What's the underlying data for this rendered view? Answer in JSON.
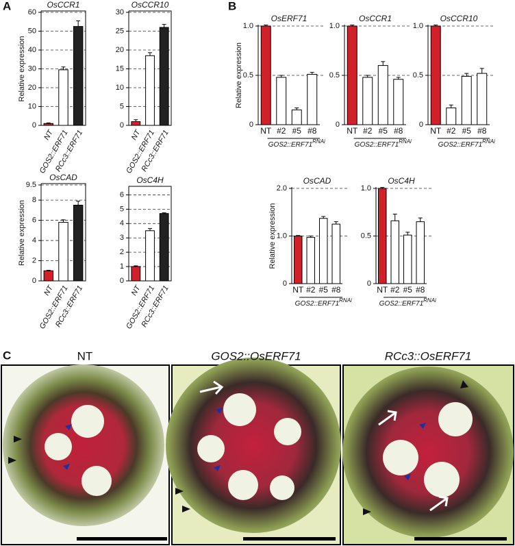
{
  "labels": [
    "A",
    "B",
    "C"
  ],
  "chart_data": [
    {
      "type": "bar",
      "title": "OsCCR1",
      "ylabel": "Relative expression",
      "categories": [
        "NT",
        "GOS2::ERF71",
        "RCc3::ERF71"
      ],
      "values": [
        1,
        29.5,
        52.5
      ],
      "errors": [
        0.3,
        1.5,
        3
      ],
      "colors": [
        "#d0202a",
        "#ffffff",
        "#222222"
      ],
      "ylim": [
        0,
        60
      ],
      "yticks": [
        0,
        10,
        20,
        30,
        40,
        50,
        60
      ],
      "grid": true
    },
    {
      "type": "bar",
      "title": "OsCCR10",
      "categories": [
        "NT",
        "GOS2::ERF71",
        "RCc3::ERF71"
      ],
      "values": [
        1,
        18.5,
        26
      ],
      "errors": [
        0.5,
        0.8,
        0.8
      ],
      "colors": [
        "#d0202a",
        "#ffffff",
        "#222222"
      ],
      "ylim": [
        0,
        30
      ],
      "yticks": [
        0,
        5,
        10,
        15,
        20,
        25,
        30
      ],
      "grid": true
    },
    {
      "type": "bar",
      "title": "OsCAD",
      "ylabel": "Relative expression",
      "categories": [
        "NT",
        "GOS2::ERF71",
        "RCc3::ERF71"
      ],
      "values": [
        1,
        5.8,
        7.5
      ],
      "errors": [
        0.05,
        0.25,
        0.4
      ],
      "colors": [
        "#d0202a",
        "#ffffff",
        "#222222"
      ],
      "ylim": [
        0,
        9.5
      ],
      "yticks": [
        0,
        2,
        4,
        6,
        8,
        9.5
      ],
      "grid": true
    },
    {
      "type": "bar",
      "title": "OsC4H",
      "categories": [
        "NT",
        "GOS2::ERF71",
        "RCc3::ERF71"
      ],
      "values": [
        1,
        3.5,
        4.7
      ],
      "errors": [
        0.05,
        0.15,
        0.05
      ],
      "colors": [
        "#d0202a",
        "#ffffff",
        "#222222"
      ],
      "ylim": [
        0,
        6.5
      ],
      "yticks": [
        0,
        1,
        2,
        3,
        4,
        5,
        6
      ],
      "grid": true
    },
    {
      "type": "bar",
      "title": "OsERF71",
      "ylabel": "Relative expression",
      "categories": [
        "NT",
        "#2",
        "#5",
        "#8"
      ],
      "values": [
        1,
        0.48,
        0.15,
        0.51
      ],
      "errors": [
        0.01,
        0.02,
        0.02,
        0.02
      ],
      "colors": [
        "#d0202a",
        "#ffffff",
        "#ffffff",
        "#ffffff"
      ],
      "ylim": [
        0,
        1
      ],
      "yticks": [
        0,
        0.5,
        {
          "value": 1,
          "label": "1.0"
        }
      ],
      "grid": true,
      "xlabel": "GOS2::ERF71",
      "xlabel_sup": "RNAi"
    },
    {
      "type": "bar",
      "title": "OsCCR1",
      "categories": [
        "NT",
        "#2",
        "#5",
        "#8"
      ],
      "values": [
        1,
        0.48,
        0.6,
        0.46
      ],
      "errors": [
        0.01,
        0.02,
        0.04,
        0.02
      ],
      "colors": [
        "#d0202a",
        "#ffffff",
        "#ffffff",
        "#ffffff"
      ],
      "ylim": [
        0,
        1
      ],
      "yticks": [
        0,
        0.5,
        {
          "value": 1,
          "label": "1.0"
        }
      ],
      "grid": true,
      "xlabel": "GOS2::ERF71",
      "xlabel_sup": "RNAi"
    },
    {
      "type": "bar",
      "title": "OsCCR10",
      "categories": [
        "NT",
        "#2",
        "#5",
        "#8"
      ],
      "values": [
        1,
        0.17,
        0.49,
        0.52
      ],
      "errors": [
        0.01,
        0.03,
        0.03,
        0.05
      ],
      "colors": [
        "#d0202a",
        "#ffffff",
        "#ffffff",
        "#ffffff"
      ],
      "ylim": [
        0,
        1
      ],
      "yticks": [
        0,
        0.5,
        {
          "value": 1,
          "label": "1.0"
        }
      ],
      "grid": true,
      "xlabel": "GOS2::ERF71",
      "xlabel_sup": "RNAi"
    },
    {
      "type": "bar",
      "title": "OsCAD",
      "ylabel": "Relative expression",
      "categories": [
        "NT",
        "#2",
        "#5",
        "#8"
      ],
      "values": [
        1,
        0.97,
        1.37,
        1.25
      ],
      "errors": [
        0.01,
        0.03,
        0.04,
        0.05
      ],
      "colors": [
        "#d0202a",
        "#ffffff",
        "#ffffff",
        "#ffffff"
      ],
      "ylim": [
        0,
        2
      ],
      "yticks": [
        0,
        {
          "value": 1,
          "label": "1.0"
        },
        {
          "value": 2,
          "label": "2.0"
        }
      ],
      "grid": true,
      "xlabel": "GOS2::ERF71",
      "xlabel_sup": "RNAi"
    },
    {
      "type": "bar",
      "title": "OsC4H",
      "categories": [
        "NT",
        "#2",
        "#5",
        "#8"
      ],
      "values": [
        1,
        0.66,
        0.51,
        0.65
      ],
      "errors": [
        0.01,
        0.07,
        0.03,
        0.04
      ],
      "colors": [
        "#d0202a",
        "#ffffff",
        "#ffffff",
        "#ffffff"
      ],
      "ylim": [
        0,
        1
      ],
      "yticks": [
        0,
        0.5,
        {
          "value": 1,
          "label": "1.0"
        }
      ],
      "grid": true,
      "xlabel": "GOS2::ERF71",
      "xlabel_sup": "RNAi"
    }
  ],
  "micrographs": [
    "NT",
    "GOS2::OsERF71",
    "RCc3::OsERF71"
  ]
}
